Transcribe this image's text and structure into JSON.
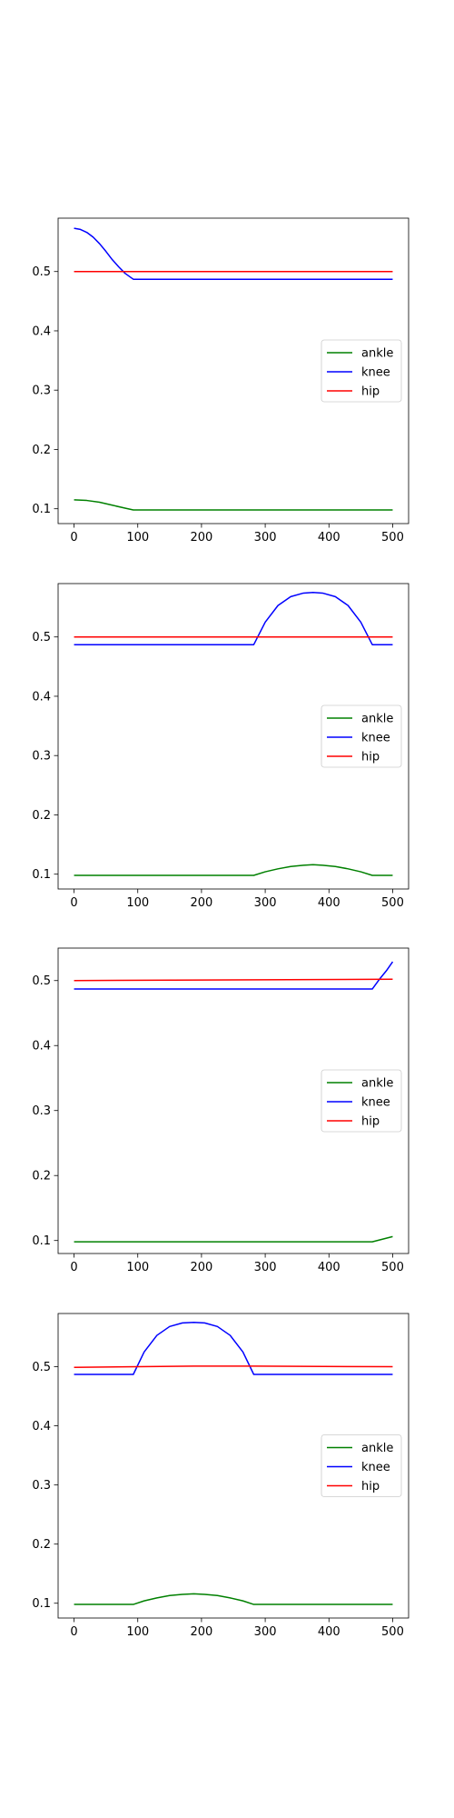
{
  "chart_data": [
    {
      "type": "line",
      "xlim": [
        -25,
        525
      ],
      "ylim": [
        0.075,
        0.59
      ],
      "xticks": [
        0,
        100,
        200,
        300,
        400,
        500
      ],
      "xtick_labels": [
        "0",
        "100",
        "200",
        "300",
        "400",
        "500"
      ],
      "yticks": [
        0.1,
        0.2,
        0.3,
        0.4,
        0.5
      ],
      "ytick_labels": [
        "0.1",
        "0.2",
        "0.3",
        "0.4",
        "0.5"
      ],
      "grid": false,
      "legend": "center-right",
      "series": [
        {
          "name": "ankle",
          "color": "#008000",
          "x": [
            0,
            20,
            40,
            60,
            80,
            93,
            500
          ],
          "y": [
            0.115,
            0.114,
            0.111,
            0.106,
            0.101,
            0.098,
            0.098
          ]
        },
        {
          "name": "knee",
          "color": "#0000ff",
          "x": [
            0,
            10,
            20,
            30,
            40,
            50,
            60,
            70,
            80,
            93,
            500
          ],
          "y": [
            0.573,
            0.571,
            0.566,
            0.558,
            0.547,
            0.534,
            0.52,
            0.508,
            0.497,
            0.487,
            0.487
          ]
        },
        {
          "name": "hip",
          "color": "#ff0000",
          "x": [
            0,
            500
          ],
          "y": [
            0.5,
            0.5
          ]
        }
      ]
    },
    {
      "type": "line",
      "xlim": [
        -25,
        525
      ],
      "ylim": [
        0.075,
        0.59
      ],
      "xticks": [
        0,
        100,
        200,
        300,
        400,
        500
      ],
      "xtick_labels": [
        "0",
        "100",
        "200",
        "300",
        "400",
        "500"
      ],
      "yticks": [
        0.1,
        0.2,
        0.3,
        0.4,
        0.5
      ],
      "ytick_labels": [
        "0.1",
        "0.2",
        "0.3",
        "0.4",
        "0.5"
      ],
      "grid": false,
      "legend": "center-right",
      "series": [
        {
          "name": "ankle",
          "color": "#008000",
          "x": [
            0,
            282,
            300,
            320,
            340,
            360,
            375,
            390,
            410,
            430,
            450,
            468,
            500
          ],
          "y": [
            0.098,
            0.098,
            0.104,
            0.109,
            0.113,
            0.115,
            0.116,
            0.115,
            0.113,
            0.109,
            0.104,
            0.098,
            0.098
          ]
        },
        {
          "name": "knee",
          "color": "#0000ff",
          "x": [
            0,
            282,
            300,
            320,
            340,
            360,
            375,
            390,
            410,
            430,
            450,
            468,
            500
          ],
          "y": [
            0.487,
            0.487,
            0.525,
            0.553,
            0.568,
            0.574,
            0.575,
            0.574,
            0.568,
            0.553,
            0.525,
            0.487,
            0.487
          ]
        },
        {
          "name": "hip",
          "color": "#ff0000",
          "x": [
            0,
            500
          ],
          "y": [
            0.5,
            0.5
          ]
        }
      ]
    },
    {
      "type": "line",
      "xlim": [
        -25,
        525
      ],
      "ylim": [
        0.08,
        0.55
      ],
      "xticks": [
        0,
        100,
        200,
        300,
        400,
        500
      ],
      "xtick_labels": [
        "0",
        "100",
        "200",
        "300",
        "400",
        "500"
      ],
      "yticks": [
        0.1,
        0.2,
        0.3,
        0.4,
        0.5
      ],
      "ytick_labels": [
        "0.1",
        "0.2",
        "0.3",
        "0.4",
        "0.5"
      ],
      "grid": false,
      "legend": "center-right",
      "series": [
        {
          "name": "ankle",
          "color": "#008000",
          "x": [
            0,
            468,
            500
          ],
          "y": [
            0.098,
            0.098,
            0.106
          ]
        },
        {
          "name": "knee",
          "color": "#0000ff",
          "x": [
            0,
            468,
            480,
            490,
            500
          ],
          "y": [
            0.487,
            0.487,
            0.503,
            0.515,
            0.529
          ]
        },
        {
          "name": "hip",
          "color": "#ff0000",
          "x": [
            0,
            500
          ],
          "y": [
            0.5,
            0.502
          ]
        }
      ]
    },
    {
      "type": "line",
      "xlim": [
        -25,
        525
      ],
      "ylim": [
        0.075,
        0.59
      ],
      "xticks": [
        0,
        100,
        200,
        300,
        400,
        500
      ],
      "xtick_labels": [
        "0",
        "100",
        "200",
        "300",
        "400",
        "500"
      ],
      "yticks": [
        0.1,
        0.2,
        0.3,
        0.4,
        0.5
      ],
      "ytick_labels": [
        "0.1",
        "0.2",
        "0.3",
        "0.4",
        "0.5"
      ],
      "grid": false,
      "legend": "center-right",
      "series": [
        {
          "name": "ankle",
          "color": "#008000",
          "x": [
            0,
            93,
            110,
            130,
            150,
            170,
            188,
            205,
            225,
            245,
            265,
            282,
            500
          ],
          "y": [
            0.098,
            0.098,
            0.104,
            0.109,
            0.113,
            0.115,
            0.116,
            0.115,
            0.113,
            0.109,
            0.104,
            0.098,
            0.098
          ]
        },
        {
          "name": "knee",
          "color": "#0000ff",
          "x": [
            0,
            93,
            110,
            130,
            150,
            170,
            188,
            205,
            225,
            245,
            265,
            282,
            500
          ],
          "y": [
            0.487,
            0.487,
            0.525,
            0.553,
            0.568,
            0.574,
            0.575,
            0.574,
            0.568,
            0.553,
            0.525,
            0.487,
            0.487
          ]
        },
        {
          "name": "hip",
          "color": "#ff0000",
          "x": [
            0,
            188,
            282,
            500
          ],
          "y": [
            0.499,
            0.501,
            0.501,
            0.5
          ]
        }
      ]
    }
  ]
}
